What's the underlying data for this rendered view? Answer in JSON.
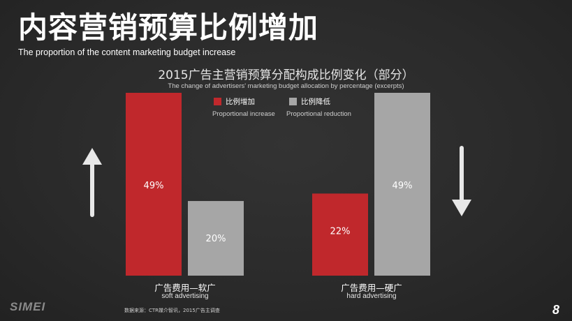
{
  "header": {
    "title": "内容营销预算比例增加",
    "subtitle": "The proportion of the  content marketing budget increase"
  },
  "chart_data": {
    "type": "bar",
    "title": "2015广告主营销预算分配构成比例变化（部分）",
    "subtitle": "The change of advertisers' marketing budget allocation by percentage (excerpts)",
    "categories": [
      "广告费用—软广",
      "广告费用—硬广"
    ],
    "category_subtitles": [
      "soft advertising",
      "hard advertising"
    ],
    "series": [
      {
        "name": "比例增加",
        "name_en": "Proportional increase",
        "values": [
          49,
          22
        ],
        "labels": [
          "49%",
          "22%"
        ],
        "color": "#c0282c"
      },
      {
        "name": "比例降低",
        "name_en": "Proportional reduction",
        "values": [
          20,
          49
        ],
        "labels": [
          "20%",
          "49%"
        ],
        "color": "#a6a6a6"
      }
    ],
    "ylim": [
      0,
      49
    ],
    "grid": false,
    "legend_position": "top-center",
    "annotations": [
      {
        "type": "arrow",
        "direction": "up",
        "near": "soft advertising"
      },
      {
        "type": "arrow",
        "direction": "down",
        "near": "hard advertising"
      }
    ]
  },
  "footer": {
    "logo": "SIMEI",
    "source": "数据来源：CTR媒介智讯，2015广告主调查",
    "page_number": "8"
  },
  "colors": {
    "background": "#2b2b2b",
    "increase": "#c0282c",
    "reduction": "#a6a6a6",
    "text": "#ffffff"
  }
}
